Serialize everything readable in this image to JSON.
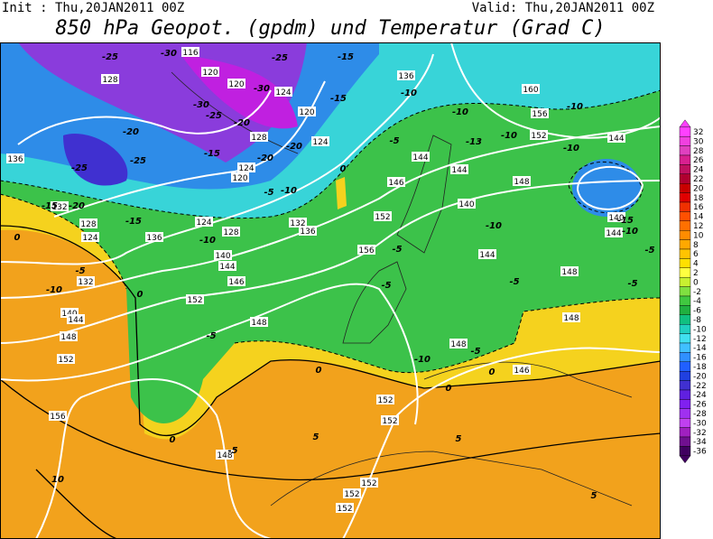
{
  "header": {
    "init": "Init : Thu,20JAN2011 00Z",
    "valid": "Valid: Thu,20JAN2011 00Z",
    "title": "850 hPa Geopot. (gpdm) und Temperatur (Grad C)"
  },
  "colorbar": {
    "levels": [
      32,
      30,
      28,
      26,
      24,
      22,
      20,
      18,
      16,
      14,
      12,
      10,
      8,
      6,
      4,
      2,
      0,
      -2,
      -4,
      -6,
      -8,
      -10,
      -12,
      -14,
      -16,
      -18,
      -20,
      -22,
      -24,
      -26,
      -28,
      -30,
      -32,
      -34,
      -36
    ],
    "colors": [
      "#ff40ff",
      "#f040e0",
      "#e040c0",
      "#d82090",
      "#c01060",
      "#b00030",
      "#c80000",
      "#e00000",
      "#f03000",
      "#ff5000",
      "#ff7000",
      "#ff8c00",
      "#ffa800",
      "#ffc400",
      "#ffe000",
      "#ffff40",
      "#c8f030",
      "#80e040",
      "#40c840",
      "#20b040",
      "#10c080",
      "#20d0c0",
      "#40e0f0",
      "#40c0ff",
      "#3090ff",
      "#2060ff",
      "#2040e0",
      "#4030d0",
      "#6020e0",
      "#8020f0",
      "#a030f0",
      "#c040f0",
      "#a020c0",
      "#701090",
      "#400060"
    ]
  },
  "geopotential_labels": [
    116,
    120,
    128,
    120,
    124,
    120,
    128,
    124,
    120,
    124,
    136,
    160,
    156,
    152,
    144,
    144,
    144,
    148,
    146,
    140,
    152,
    156,
    144,
    148,
    148,
    146,
    148,
    148,
    152,
    146,
    144,
    140,
    136,
    128,
    124,
    132,
    136,
    132,
    128,
    124,
    132,
    140,
    144,
    148,
    152,
    156,
    152,
    152,
    148,
    152,
    152,
    152,
    140,
    144,
    136
  ],
  "temperature_labels": [
    -25,
    -30,
    -25,
    -15,
    -30,
    -15,
    -10,
    -20,
    -30,
    -25,
    -20,
    -10,
    -10,
    -10,
    -13,
    -5,
    -10,
    -25,
    -25,
    -15,
    -20,
    -20,
    -5,
    -10,
    0,
    -15,
    -20,
    -15,
    -10,
    -5,
    -10,
    -15,
    -10,
    -5,
    -5,
    -5,
    -5,
    -5,
    -5,
    0,
    0,
    0,
    -10,
    -5,
    0,
    0,
    0,
    -5,
    5,
    5,
    5,
    10,
    -10
  ]
}
